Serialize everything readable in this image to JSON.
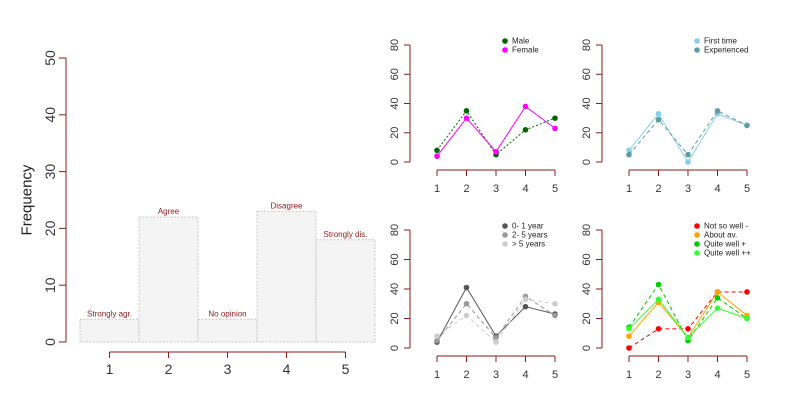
{
  "chart_data": [
    {
      "type": "bar",
      "ylabel": "Frequency",
      "x_ticks": [
        "1",
        "2",
        "3",
        "4",
        "5"
      ],
      "y_ticks": [
        0,
        10,
        20,
        30,
        40,
        50
      ],
      "ylim": [
        0,
        50
      ],
      "categories": [
        "1",
        "2",
        "3",
        "4",
        "5"
      ],
      "values": [
        4,
        22,
        4,
        23,
        18
      ],
      "bar_labels": [
        "Strongly agr.",
        "Agree",
        "No opinion",
        "Disagree",
        "Strongly dis."
      ],
      "colors": {
        "bar_fill": "#f4f4f4",
        "bar_stroke": "#c8c8c8",
        "axis": "#8b1a1a",
        "bar_label": "#8b1a1a"
      }
    },
    {
      "type": "line",
      "x": [
        1,
        2,
        3,
        4,
        5
      ],
      "ylim": [
        0,
        80
      ],
      "y_ticks": [
        0,
        20,
        40,
        60,
        80
      ],
      "legend_position": "top-right",
      "series": [
        {
          "name": "Male",
          "values": [
            8,
            35,
            5,
            22,
            30
          ],
          "color": "#006400",
          "line": "dotted"
        },
        {
          "name": "Female",
          "values": [
            4,
            30,
            7,
            38,
            23
          ],
          "color": "#ff00ff",
          "line": "solid"
        }
      ]
    },
    {
      "type": "line",
      "x": [
        1,
        2,
        3,
        4,
        5
      ],
      "ylim": [
        0,
        80
      ],
      "y_ticks": [
        0,
        20,
        40,
        60,
        80
      ],
      "legend_position": "top-right",
      "series": [
        {
          "name": "First time",
          "values": [
            8,
            33,
            0,
            33,
            25
          ],
          "color": "#87ceeb",
          "line": "solid"
        },
        {
          "name": "Experienced",
          "values": [
            5,
            29,
            5,
            35,
            25
          ],
          "color": "#5f9ea0",
          "line": "dashed"
        }
      ]
    },
    {
      "type": "line",
      "x": [
        1,
        2,
        3,
        4,
        5
      ],
      "ylim": [
        0,
        80
      ],
      "y_ticks": [
        0,
        20,
        40,
        60,
        80
      ],
      "legend_position": "top-right",
      "series": [
        {
          "name": "0- 1 year",
          "values": [
            4,
            41,
            8,
            28,
            23
          ],
          "color": "#555555",
          "line": "solid"
        },
        {
          "name": "2- 5 years",
          "values": [
            5,
            30,
            7,
            35,
            22
          ],
          "color": "#999999",
          "line": "dashed"
        },
        {
          "name": "> 5 years",
          "values": [
            8,
            22,
            4,
            33,
            30
          ],
          "color": "#cccccc",
          "line": "dashed"
        }
      ]
    },
    {
      "type": "line",
      "x": [
        1,
        2,
        3,
        4,
        5
      ],
      "ylim": [
        0,
        80
      ],
      "y_ticks": [
        0,
        20,
        40,
        60,
        80
      ],
      "legend_position": "top-right",
      "series": [
        {
          "name": "Not so well -",
          "values": [
            0,
            13,
            13,
            38,
            38
          ],
          "color": "#ff0000",
          "line": "dashed"
        },
        {
          "name": "About av.",
          "values": [
            8,
            31,
            7,
            38,
            22
          ],
          "color": "#ffa500",
          "line": "solid"
        },
        {
          "name": "Quite well +",
          "values": [
            14,
            43,
            5,
            34,
            20
          ],
          "color": "#00cc00",
          "line": "dashed"
        },
        {
          "name": "Quite well ++",
          "values": [
            13,
            33,
            7,
            27,
            20
          ],
          "color": "#33ff33",
          "line": "solid"
        }
      ]
    }
  ]
}
